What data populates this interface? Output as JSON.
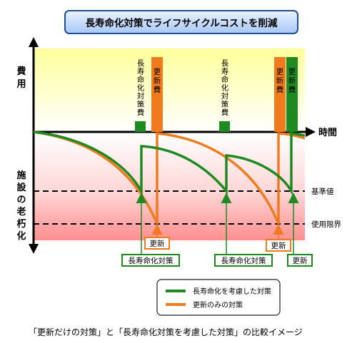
{
  "title": "長寿命化対策でライフサイクルコストを削減",
  "axes": {
    "cost_label": "費用",
    "time_label": "時間",
    "aging_label": "施設の老朽化"
  },
  "levels": {
    "standard": "基準値",
    "limit": "使用限界"
  },
  "bar_labels": {
    "life_extension_cost": "長寿命化対策費",
    "renewal_cost": "更新費"
  },
  "action_labels": {
    "renewal": "更新",
    "life_extension": "長寿命化対策"
  },
  "legend": {
    "green_label": "長寿命化を考慮した対策",
    "orange_label": "更新のみの対策"
  },
  "caption": "「更新だけの対策」と「長寿命化対策を考慮した対策」の比較イメージ",
  "colors": {
    "green": "#1e8a22",
    "orange": "#f07a1e",
    "cost_zone_top": "#ffff9a",
    "aging_zone_bottom": "#ff8f8f"
  }
}
